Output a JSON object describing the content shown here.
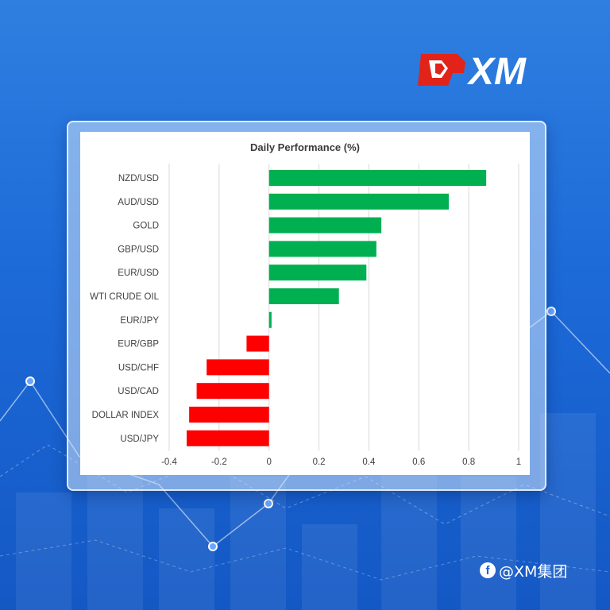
{
  "brand": {
    "logo_text": "XM",
    "accent_red": "#e2231a"
  },
  "watermark": {
    "icon": "facebook-icon",
    "text": "@XM集团"
  },
  "colors": {
    "positive": "#00b050",
    "negative": "#ff0000",
    "grid": "#d9d9d9",
    "text": "#404040"
  },
  "chart_data": {
    "type": "bar",
    "orientation": "horizontal",
    "title": "Daily Performance (%)",
    "xlabel": "",
    "ylabel": "",
    "xlim": [
      -0.4,
      1
    ],
    "xticks": [
      "-0.4",
      "-0.2",
      "0",
      "0.2",
      "0.4",
      "0.6",
      "0.8",
      "1"
    ],
    "grid": true,
    "categories": [
      "NZD/USD",
      "AUD/USD",
      "GOLD",
      "GBP/USD",
      "EUR/USD",
      "WTI CRUDE OIL",
      "EUR/JPY",
      "EUR/GBP",
      "USD/CHF",
      "USD/CAD",
      "DOLLAR INDEX",
      "USD/JPY"
    ],
    "values": [
      0.87,
      0.72,
      0.45,
      0.43,
      0.39,
      0.28,
      0.01,
      -0.09,
      -0.25,
      -0.29,
      -0.32,
      -0.33
    ]
  }
}
